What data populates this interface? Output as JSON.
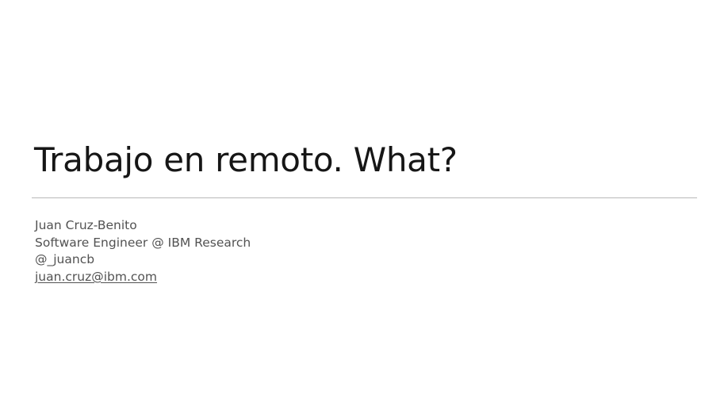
{
  "slide": {
    "title": "Trabajo en remoto. What?",
    "author": {
      "name": "Juan Cruz-Benito",
      "role": "Software Engineer @ IBM Research",
      "handle": "@_juancb",
      "email": "juan.cruz@ibm.com"
    }
  },
  "colors": {
    "title": "#161616",
    "body_text": "#525252",
    "divider": "#b8b8b8",
    "background": "#ffffff"
  }
}
